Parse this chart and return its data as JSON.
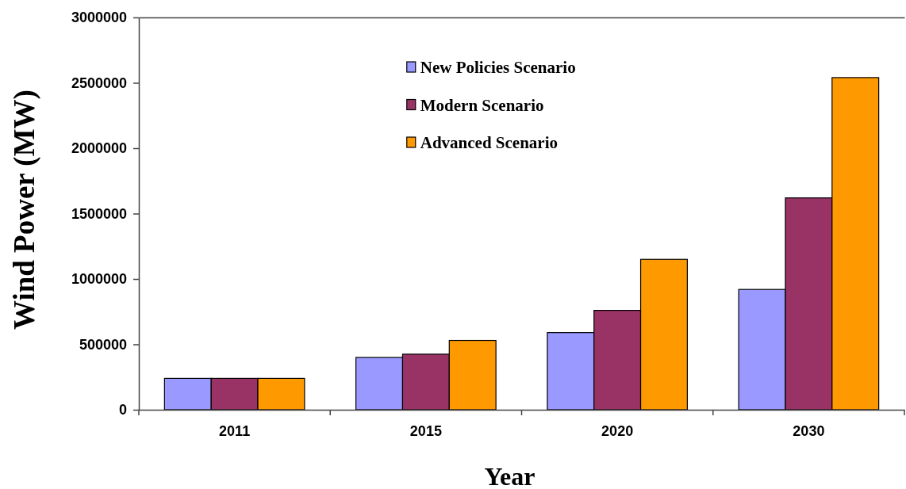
{
  "chart_data": {
    "type": "bar",
    "xlabel": "Year",
    "ylabel": "Wind Power (MW)",
    "categories": [
      "2011",
      "2015",
      "2020",
      "2030"
    ],
    "series": [
      {
        "name": "New Policies Scenario",
        "color": "#9999ff",
        "values": [
          240000,
          400000,
          590000,
          920000
        ]
      },
      {
        "name": "Modern Scenario",
        "color": "#993366",
        "values": [
          240000,
          425000,
          760000,
          1620000
        ]
      },
      {
        "name": "Advanced Scenario",
        "color": "#ff9900",
        "values": [
          240000,
          530000,
          1150000,
          2540000
        ]
      }
    ],
    "ylim": [
      0,
      3000000
    ],
    "yticks": [
      0,
      500000,
      1000000,
      1500000,
      2000000,
      2500000,
      3000000
    ],
    "grid": false,
    "legend": "top"
  }
}
